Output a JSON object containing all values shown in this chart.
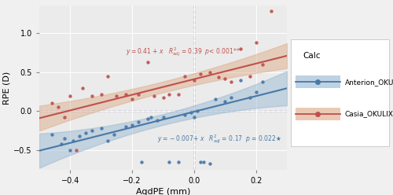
{
  "xlabel": "AqdPE (mm)",
  "ylabel": "RPE (D)",
  "legend_title": "Calc",
  "panel_color": "#EBEBEB",
  "outer_color": "#F0F0F0",
  "blue_color": "#4878A8",
  "orange_color": "#C0504D",
  "blue_fill": "#92B4D0",
  "orange_fill": "#DDA882",
  "xlim": [
    -0.5,
    0.3
  ],
  "ylim": [
    -0.75,
    1.35
  ],
  "xticks": [
    -0.4,
    -0.2,
    0.0,
    0.2
  ],
  "yticks": [
    -0.5,
    0.0,
    0.5,
    1.0
  ],
  "blue_intercept": -0.007,
  "blue_slope": 1.0,
  "orange_intercept": 0.41,
  "orange_slope": 1.0,
  "blue_x": [
    -0.46,
    -0.43,
    -0.42,
    -0.4,
    -0.39,
    -0.37,
    -0.35,
    -0.33,
    -0.3,
    -0.28,
    -0.26,
    -0.22,
    -0.2,
    -0.18,
    -0.17,
    -0.15,
    -0.14,
    -0.12,
    -0.1,
    -0.08,
    -0.05,
    -0.03,
    -0.01,
    0.0,
    0.01,
    0.02,
    0.03,
    0.05,
    0.07,
    0.1,
    0.12,
    0.15,
    0.18,
    0.2,
    0.22
  ],
  "blue_y": [
    -0.3,
    -0.42,
    -0.35,
    -0.5,
    -0.38,
    -0.32,
    -0.28,
    -0.25,
    -0.22,
    -0.38,
    -0.3,
    -0.2,
    -0.18,
    -0.14,
    -0.65,
    -0.1,
    -0.08,
    -0.12,
    -0.08,
    -0.65,
    -0.65,
    -0.05,
    -0.02,
    -0.08,
    0.0,
    -0.65,
    -0.65,
    -0.67,
    0.15,
    0.12,
    0.18,
    0.4,
    0.18,
    0.25,
    0.38
  ],
  "orange_x": [
    -0.46,
    -0.44,
    -0.42,
    -0.4,
    -0.38,
    -0.36,
    -0.33,
    -0.3,
    -0.28,
    -0.25,
    -0.22,
    -0.2,
    -0.18,
    -0.15,
    -0.13,
    -0.1,
    -0.08,
    -0.05,
    -0.03,
    0.0,
    0.02,
    0.05,
    0.08,
    0.1,
    0.12,
    0.15,
    0.18,
    0.2,
    0.22,
    0.25
  ],
  "orange_y": [
    0.1,
    0.05,
    -0.08,
    0.2,
    -0.5,
    0.3,
    0.2,
    0.22,
    0.45,
    0.2,
    0.22,
    0.15,
    0.22,
    0.63,
    0.2,
    0.18,
    0.22,
    0.22,
    0.45,
    0.4,
    0.48,
    0.5,
    0.44,
    0.42,
    0.38,
    0.8,
    0.45,
    0.88,
    0.6,
    1.28
  ]
}
